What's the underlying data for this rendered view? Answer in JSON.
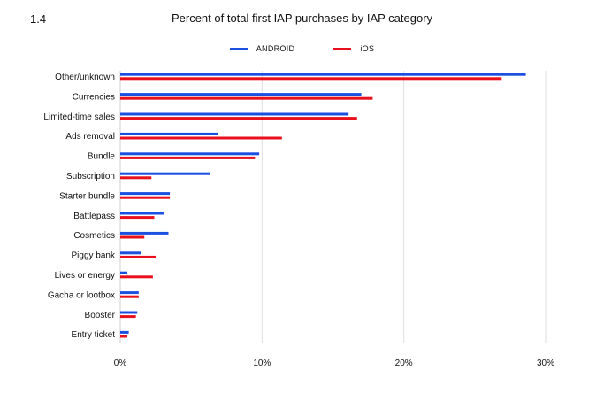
{
  "figure": {
    "number": "1.4"
  },
  "chart_data": {
    "type": "bar",
    "orientation": "horizontal",
    "title": "Percent of total first IAP purchases by IAP category",
    "xlabel": "",
    "ylabel": "",
    "categories": [
      "Other/unknown",
      "Currencies",
      "Limited-time sales",
      "Ads removal",
      "Bundle",
      "Subscription",
      "Starter bundle",
      "Battlepass",
      "Cosmetics",
      "Piggy bank",
      "Lives or energy",
      "Gacha or lootbox",
      "Booster",
      "Entry ticket"
    ],
    "series": [
      {
        "name": "ANDROID",
        "color": "#1A4FE0",
        "values": [
          28.6,
          17.0,
          16.1,
          6.9,
          9.8,
          6.3,
          3.5,
          3.1,
          3.4,
          1.5,
          0.5,
          1.3,
          1.2,
          0.6
        ]
      },
      {
        "name": "iOS",
        "color": "#E8101A",
        "values": [
          26.9,
          17.8,
          16.7,
          11.4,
          9.5,
          2.2,
          3.5,
          2.4,
          1.7,
          2.5,
          2.3,
          1.3,
          1.1,
          0.5
        ]
      }
    ],
    "xlim": [
      0,
      30
    ],
    "xticks": [
      0,
      10,
      20,
      30
    ],
    "xtick_labels": [
      "0%",
      "10%",
      "20%",
      "30%"
    ],
    "grid": true,
    "legend_position": "top-center"
  }
}
